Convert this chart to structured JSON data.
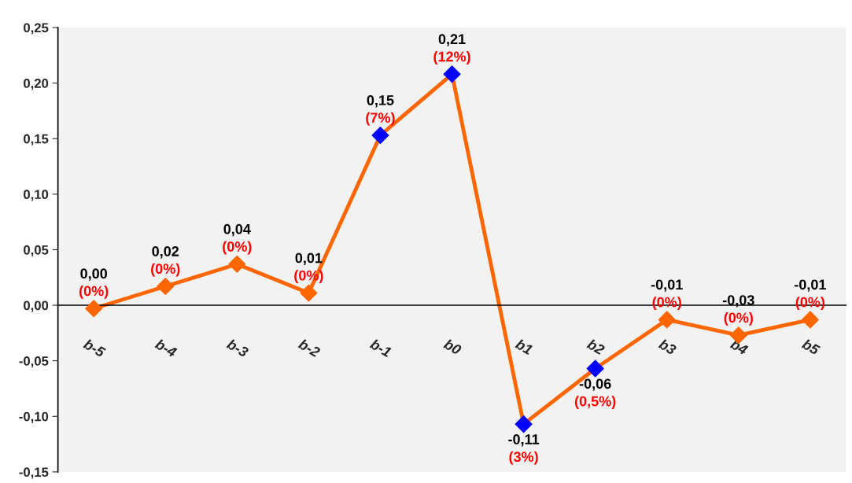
{
  "chart_data": {
    "type": "line",
    "categories": [
      "b-5",
      "b-4",
      "b-3",
      "b-2",
      "b-1",
      "b0",
      "b1",
      "b2",
      "b3",
      "b4",
      "b5"
    ],
    "series": [
      {
        "color": "#ff6600",
        "colors": [
          "#ff6600",
          "#ff6600",
          "#ff6600",
          "#ff6600",
          "#0000ff",
          "#0000ff",
          "#0000ff",
          "#0000ff",
          "#ff6600",
          "#ff6600",
          "#ff6600"
        ],
        "values": [
          -0.003,
          0.017,
          0.037,
          0.011,
          0.153,
          0.208,
          -0.107,
          -0.057,
          -0.013,
          -0.027,
          -0.013
        ],
        "value_labels": [
          "0,00",
          "0,02",
          "0,04",
          "0,01",
          "0,15",
          "0,21",
          "-0,11",
          "-0,06",
          "-0,01",
          "-0,03",
          "-0,01"
        ]
      }
    ],
    "annotations": [
      {
        "text": "(0%)",
        "x": "b-5",
        "y": -0.003
      },
      {
        "text": "(0%)",
        "x": "b-4",
        "y": 0.017
      },
      {
        "text": "(0%)",
        "x": "b-3",
        "y": 0.037
      },
      {
        "text": "(0%)",
        "x": "b-2",
        "y": 0.011
      },
      {
        "text": "(7%)",
        "x": "b-1",
        "y": 0.153
      },
      {
        "text": "(12%)",
        "x": "b0",
        "y": 0.208
      },
      {
        "text": "(3%)",
        "x": "b1",
        "y": -0.107
      },
      {
        "text": "(0,5%)",
        "x": "b2",
        "y": -0.057
      },
      {
        "text": "(0%)",
        "x": "b3",
        "y": -0.013
      },
      {
        "text": "(0%)",
        "x": "b4",
        "y": -0.027
      },
      {
        "text": "(0%)",
        "x": "b5",
        "y": -0.013
      }
    ],
    "ylim": [
      -0.15,
      0.25
    ],
    "yticks": [
      {
        "value": -0.15,
        "label": "-0,15"
      },
      {
        "value": -0.1,
        "label": "-0,10"
      },
      {
        "value": -0.05,
        "label": "-0,05"
      },
      {
        "value": 0,
        "label": "0,00"
      },
      {
        "value": 0.05,
        "label": "0,05"
      },
      {
        "value": 0.1,
        "label": "0,10"
      },
      {
        "value": 0.15,
        "label": "0,15"
      },
      {
        "value": 0.2,
        "label": "0,20"
      },
      {
        "value": 0.25,
        "label": "0,25"
      }
    ],
    "marker": "diamond",
    "line_style": "solid",
    "grid": false,
    "legend": false
  }
}
